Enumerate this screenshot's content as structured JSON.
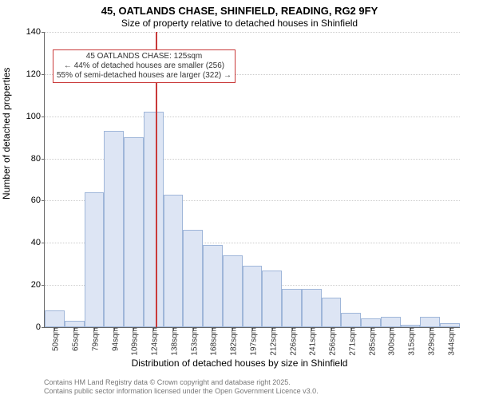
{
  "title_line1": "45, OATLANDS CHASE, SHINFIELD, READING, RG2 9FY",
  "title_line2": "Size of property relative to detached houses in Shinfield",
  "ylabel": "Number of detached properties",
  "xlabel": "Distribution of detached houses by size in Shinfield",
  "chart": {
    "type": "histogram",
    "ylim": [
      0,
      140
    ],
    "ytick_step": 20,
    "yticks": [
      0,
      20,
      40,
      60,
      80,
      100,
      120,
      140
    ],
    "bar_fill": "#dde5f4",
    "bar_border": "#9fb6d9",
    "grid_color": "#cccccc",
    "background": "#ffffff",
    "marker_color": "#c93a3a",
    "marker_x_value": 125,
    "x_categories": [
      "50sqm",
      "65sqm",
      "79sqm",
      "94sqm",
      "109sqm",
      "124sqm",
      "138sqm",
      "153sqm",
      "168sqm",
      "182sqm",
      "197sqm",
      "212sqm",
      "226sqm",
      "241sqm",
      "256sqm",
      "271sqm",
      "285sqm",
      "300sqm",
      "315sqm",
      "329sqm",
      "344sqm"
    ],
    "values": [
      8,
      3,
      64,
      93,
      90,
      102,
      63,
      46,
      39,
      34,
      29,
      27,
      18,
      18,
      14,
      7,
      4,
      5,
      1,
      5,
      2
    ],
    "title_fontsize": 13,
    "label_fontsize": 12,
    "tick_fontsize": 10
  },
  "annotation": {
    "line1": "← 44% of detached houses are smaller (256)",
    "line2": "55% of semi-detached houses are larger (322) →",
    "header": "45 OATLANDS CHASE: 125sqm"
  },
  "footer": {
    "line1": "Contains HM Land Registry data © Crown copyright and database right 2025.",
    "line2": "Contains public sector information licensed under the Open Government Licence v3.0."
  }
}
